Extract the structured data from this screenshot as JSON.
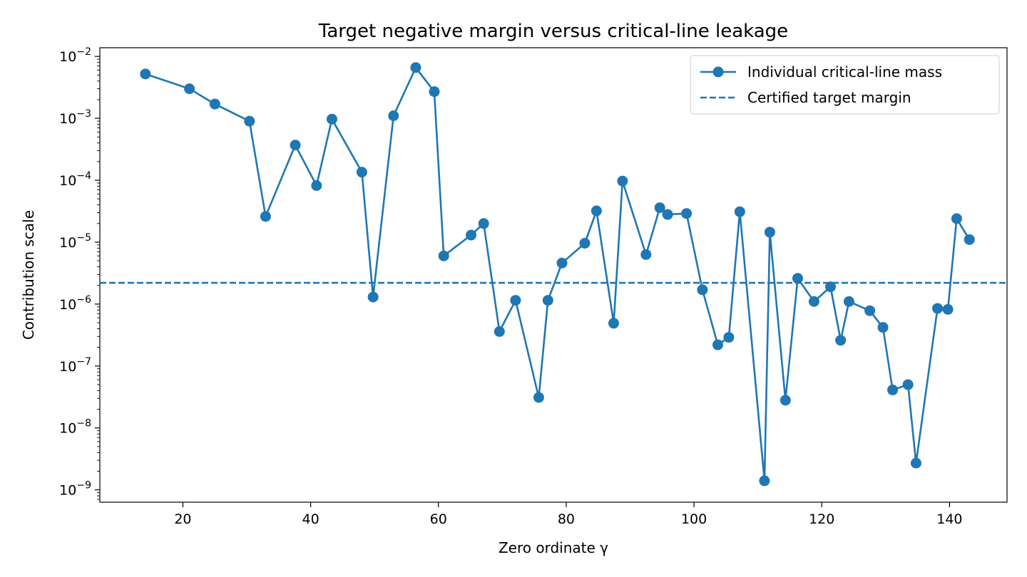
{
  "chart_data": {
    "type": "line",
    "title": "Target negative margin versus critical-line leakage",
    "xlabel": "Zero ordinate γ",
    "ylabel": "Contribution scale",
    "xlim": [
      7,
      149
    ],
    "ylim_exp": [
      -9.2,
      -1.86
    ],
    "y_scale": "log",
    "grid": false,
    "legend_position": "top-right",
    "colors": {
      "series": "#1f77b4"
    },
    "x_ticks": [
      20,
      40,
      60,
      80,
      100,
      120,
      140
    ],
    "x_tick_labels": [
      "20",
      "40",
      "60",
      "80",
      "100",
      "120",
      "140"
    ],
    "y_ticks_exp": [
      -9,
      -8,
      -7,
      -6,
      -5,
      -4,
      -3,
      -2
    ],
    "y_tick_labels": [
      "10",
      "10",
      "10",
      "10",
      "10",
      "10",
      "10",
      "10"
    ],
    "y_tick_exponents": [
      "−9",
      "−8",
      "−7",
      "−6",
      "−5",
      "−4",
      "−3",
      "−2"
    ],
    "series": [
      {
        "name": "Individual critical-line mass",
        "style": "line-marker",
        "x": [
          14.13,
          21.02,
          25.01,
          30.42,
          32.94,
          37.59,
          40.92,
          43.33,
          48.01,
          49.77,
          52.97,
          56.45,
          59.35,
          60.83,
          65.11,
          67.08,
          69.55,
          72.07,
          75.7,
          77.14,
          79.34,
          82.91,
          84.74,
          87.43,
          88.81,
          92.49,
          94.65,
          95.87,
          98.83,
          101.32,
          103.73,
          105.45,
          107.17,
          111.03,
          111.87,
          114.32,
          116.23,
          118.79,
          121.37,
          122.95,
          124.26,
          127.52,
          129.58,
          131.09,
          133.5,
          134.76,
          138.12,
          139.74,
          141.12,
          143.11
        ],
        "y": [
          0.0052,
          0.003,
          0.0017,
          0.0009,
          2.6e-05,
          0.00037,
          8.2e-05,
          0.00097,
          0.000135,
          1.3e-06,
          0.0011,
          0.0066,
          0.0027,
          6e-06,
          1.3e-05,
          2e-05,
          3.6e-07,
          1.15e-06,
          3.1e-08,
          1.15e-06,
          4.6e-06,
          9.6e-06,
          3.2e-05,
          4.9e-07,
          9.7e-05,
          6.3e-06,
          3.6e-05,
          2.8e-05,
          2.9e-05,
          1.7e-06,
          2.2e-07,
          2.9e-07,
          3.1e-05,
          1.4e-09,
          1.45e-05,
          2.8e-08,
          2.6e-06,
          1.1e-06,
          1.9e-06,
          2.6e-07,
          1.1e-06,
          7.8e-07,
          4.2e-07,
          4.1e-08,
          5e-08,
          2.7e-09,
          8.5e-07,
          8.2e-07,
          2.4e-05,
          1.1e-05
        ]
      },
      {
        "name": "Certified target margin",
        "style": "dashed-hline",
        "y": 2.2e-06
      }
    ]
  }
}
